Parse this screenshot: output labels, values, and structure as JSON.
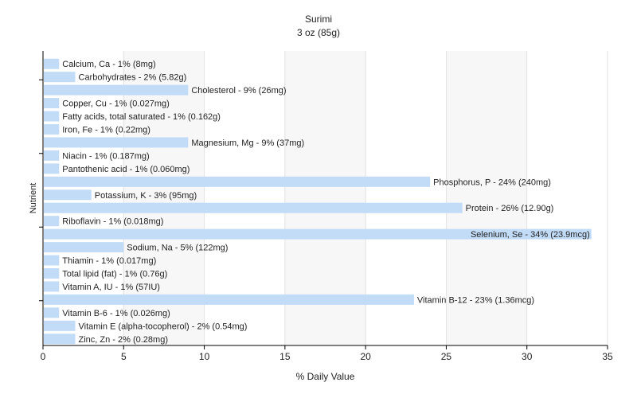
{
  "chart_data": {
    "type": "bar",
    "orientation": "horizontal",
    "title": "Surimi",
    "subtitle": "3 oz (85g)",
    "xlabel": "% Daily Value",
    "ylabel": "Nutrient",
    "xlim": [
      0,
      35
    ],
    "xticks": [
      "0",
      "5",
      "10",
      "15",
      "20",
      "25",
      "30",
      "35"
    ],
    "grid": true,
    "bar_color": "#c2dcf8",
    "bars": [
      {
        "nutrient": "Calcium, Ca",
        "value": 1,
        "label": "Calcium, Ca - 1% (8mg)"
      },
      {
        "nutrient": "Carbohydrates",
        "value": 2,
        "label": "Carbohydrates - 2% (5.82g)"
      },
      {
        "nutrient": "Cholesterol",
        "value": 9,
        "label": "Cholesterol - 9% (26mg)"
      },
      {
        "nutrient": "Copper, Cu",
        "value": 1,
        "label": "Copper, Cu - 1% (0.027mg)"
      },
      {
        "nutrient": "Fatty acids, total saturated",
        "value": 1,
        "label": "Fatty acids, total saturated - 1% (0.162g)"
      },
      {
        "nutrient": "Iron, Fe",
        "value": 1,
        "label": "Iron, Fe - 1% (0.22mg)"
      },
      {
        "nutrient": "Magnesium, Mg",
        "value": 9,
        "label": "Magnesium, Mg - 9% (37mg)"
      },
      {
        "nutrient": "Niacin",
        "value": 1,
        "label": "Niacin - 1% (0.187mg)"
      },
      {
        "nutrient": "Pantothenic acid",
        "value": 1,
        "label": "Pantothenic acid - 1% (0.060mg)"
      },
      {
        "nutrient": "Phosphorus, P",
        "value": 24,
        "label": "Phosphorus, P - 24% (240mg)"
      },
      {
        "nutrient": "Potassium, K",
        "value": 3,
        "label": "Potassium, K - 3% (95mg)"
      },
      {
        "nutrient": "Protein",
        "value": 26,
        "label": "Protein - 26% (12.90g)"
      },
      {
        "nutrient": "Riboflavin",
        "value": 1,
        "label": "Riboflavin - 1% (0.018mg)"
      },
      {
        "nutrient": "Selenium, Se",
        "value": 34,
        "label": "Selenium, Se - 34% (23.9mcg)"
      },
      {
        "nutrient": "Sodium, Na",
        "value": 5,
        "label": "Sodium, Na - 5% (122mg)"
      },
      {
        "nutrient": "Thiamin",
        "value": 1,
        "label": "Thiamin - 1% (0.017mg)"
      },
      {
        "nutrient": "Total lipid (fat)",
        "value": 1,
        "label": "Total lipid (fat) - 1% (0.76g)"
      },
      {
        "nutrient": "Vitamin A, IU",
        "value": 1,
        "label": "Vitamin A, IU - 1% (57IU)"
      },
      {
        "nutrient": "Vitamin B-12",
        "value": 23,
        "label": "Vitamin B-12 - 23% (1.36mcg)"
      },
      {
        "nutrient": "Vitamin B-6",
        "value": 1,
        "label": "Vitamin B-6 - 1% (0.026mg)"
      },
      {
        "nutrient": "Vitamin E (alpha-tocopherol)",
        "value": 2,
        "label": "Vitamin E (alpha-tocopherol) - 2% (0.54mg)"
      },
      {
        "nutrient": "Zinc, Zn",
        "value": 2,
        "label": "Zinc, Zn - 2% (0.28mg)"
      }
    ]
  }
}
